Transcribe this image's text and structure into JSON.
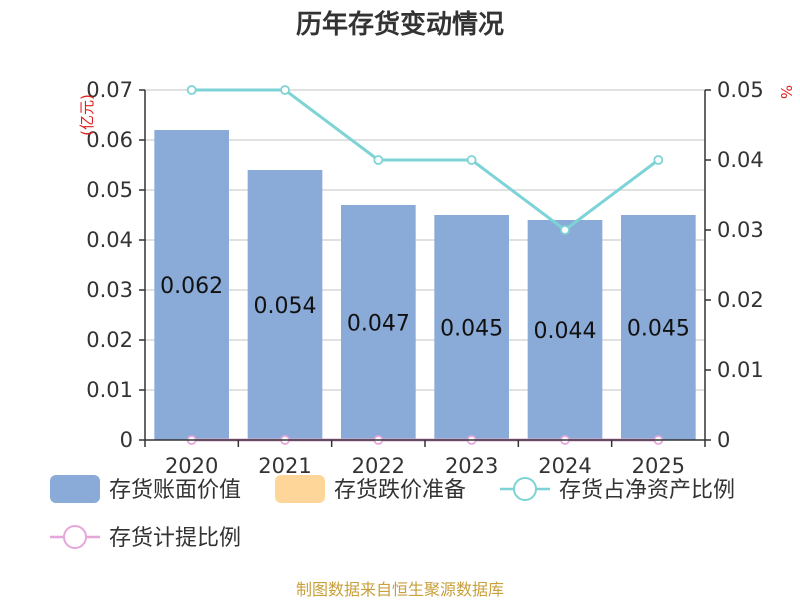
{
  "title": "历年存货变动情况",
  "source": "制图数据来自恒生聚源数据库",
  "colors": {
    "bar_book_value": "#8aaad8",
    "bar_impairment": "#ffd699",
    "line_ratio": "#7dd3d5",
    "line_provision": "#e6a6da",
    "axis": "#333333",
    "grid": "#cfcfcf",
    "unit": "#e02020",
    "source": "#c8a03c"
  },
  "chart_data": {
    "type": "bar",
    "title": "历年存货变动情况",
    "categories": [
      "2020",
      "2021",
      "2022",
      "2023",
      "2024",
      "2025"
    ],
    "y_left": {
      "unit": "(亿元)",
      "ylim": [
        0,
        0.07
      ],
      "ticks": [
        "0",
        "0.01",
        "0.02",
        "0.03",
        "0.04",
        "0.05",
        "0.06",
        "0.07"
      ]
    },
    "y_right": {
      "unit": "%",
      "ylim": [
        0,
        0.05
      ],
      "ticks": [
        "0",
        "0.01",
        "0.02",
        "0.03",
        "0.04",
        "0.05"
      ]
    },
    "grid": true,
    "legend_position": "bottom",
    "series": [
      {
        "name": "存货账面价值",
        "kind": "bar",
        "axis": "left",
        "values": [
          0.062,
          0.054,
          0.047,
          0.045,
          0.044,
          0.045
        ],
        "labels": [
          "0.062",
          "0.054",
          "0.047",
          "0.045",
          "0.044",
          "0.045"
        ]
      },
      {
        "name": "存货跌价准备",
        "kind": "bar",
        "axis": "left",
        "values": [
          0,
          0,
          0,
          0,
          0,
          0
        ]
      },
      {
        "name": "存货占净资产比例",
        "kind": "line",
        "axis": "right",
        "values": [
          0.05,
          0.05,
          0.04,
          0.04,
          0.03,
          0.04
        ]
      },
      {
        "name": "存货计提比例",
        "kind": "line",
        "axis": "right",
        "values": [
          0,
          0,
          0,
          0,
          0,
          0
        ]
      }
    ]
  }
}
